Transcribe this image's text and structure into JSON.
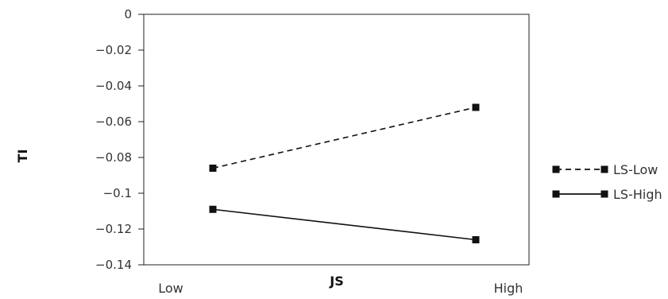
{
  "chart_data": {
    "type": "line",
    "title": "",
    "xlabel": "JS",
    "ylabel": "TI",
    "categories": [
      "Low",
      "High"
    ],
    "ylim": [
      -0.14,
      0
    ],
    "yticks": [
      "0",
      "−0.02",
      "−0.04",
      "−0.06",
      "−0.08",
      "−0.1",
      "−0.12",
      "−0.14"
    ],
    "grid": false,
    "legend_position": "right",
    "series": [
      {
        "name": "LS-Low",
        "values": [
          -0.086,
          -0.052
        ],
        "line_style": "dashed",
        "marker": "square",
        "color": "#111111"
      },
      {
        "name": "LS-High",
        "values": [
          -0.109,
          -0.126
        ],
        "line_style": "solid",
        "marker": "square",
        "color": "#111111"
      }
    ]
  }
}
